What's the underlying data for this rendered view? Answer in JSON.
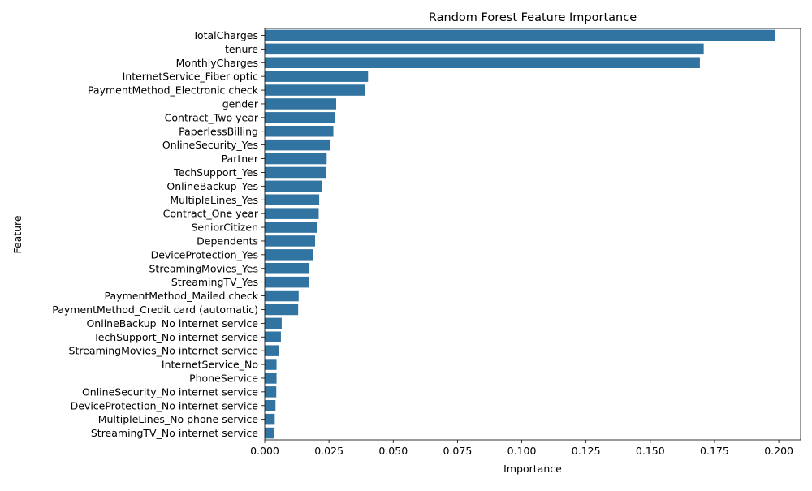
{
  "chart_data": {
    "type": "bar",
    "orientation": "horizontal",
    "title": "Random Forest Feature Importance",
    "xlabel": "Importance",
    "ylabel": "Feature",
    "xlim": [
      0.0,
      0.2085
    ],
    "xticks": [
      "0.000",
      "0.025",
      "0.050",
      "0.075",
      "0.100",
      "0.125",
      "0.150",
      "0.175",
      "0.200"
    ],
    "grid": false,
    "bar_color": "#3274a1",
    "categories": [
      "TotalCharges",
      "tenure",
      "MonthlyCharges",
      "InternetService_Fiber optic",
      "PaymentMethod_Electronic check",
      "gender",
      "Contract_Two year",
      "PaperlessBilling",
      "OnlineSecurity_Yes",
      "Partner",
      "TechSupport_Yes",
      "OnlineBackup_Yes",
      "MultipleLines_Yes",
      "Contract_One year",
      "SeniorCitizen",
      "Dependents",
      "DeviceProtection_Yes",
      "StreamingMovies_Yes",
      "StreamingTV_Yes",
      "PaymentMethod_Mailed check",
      "PaymentMethod_Credit card (automatic)",
      "OnlineBackup_No internet service",
      "TechSupport_No internet service",
      "StreamingMovies_No internet service",
      "InternetService_No",
      "PhoneService",
      "OnlineSecurity_No internet service",
      "DeviceProtection_No internet service",
      "MultipleLines_No phone service",
      "StreamingTV_No internet service"
    ],
    "values": [
      0.1985,
      0.1708,
      0.1693,
      0.0402,
      0.039,
      0.0278,
      0.0275,
      0.0267,
      0.0253,
      0.0241,
      0.0237,
      0.0224,
      0.0212,
      0.021,
      0.0204,
      0.0196,
      0.0189,
      0.0174,
      0.0171,
      0.0132,
      0.013,
      0.0066,
      0.0063,
      0.0055,
      0.0046,
      0.0046,
      0.0045,
      0.0042,
      0.0039,
      0.0035
    ]
  }
}
